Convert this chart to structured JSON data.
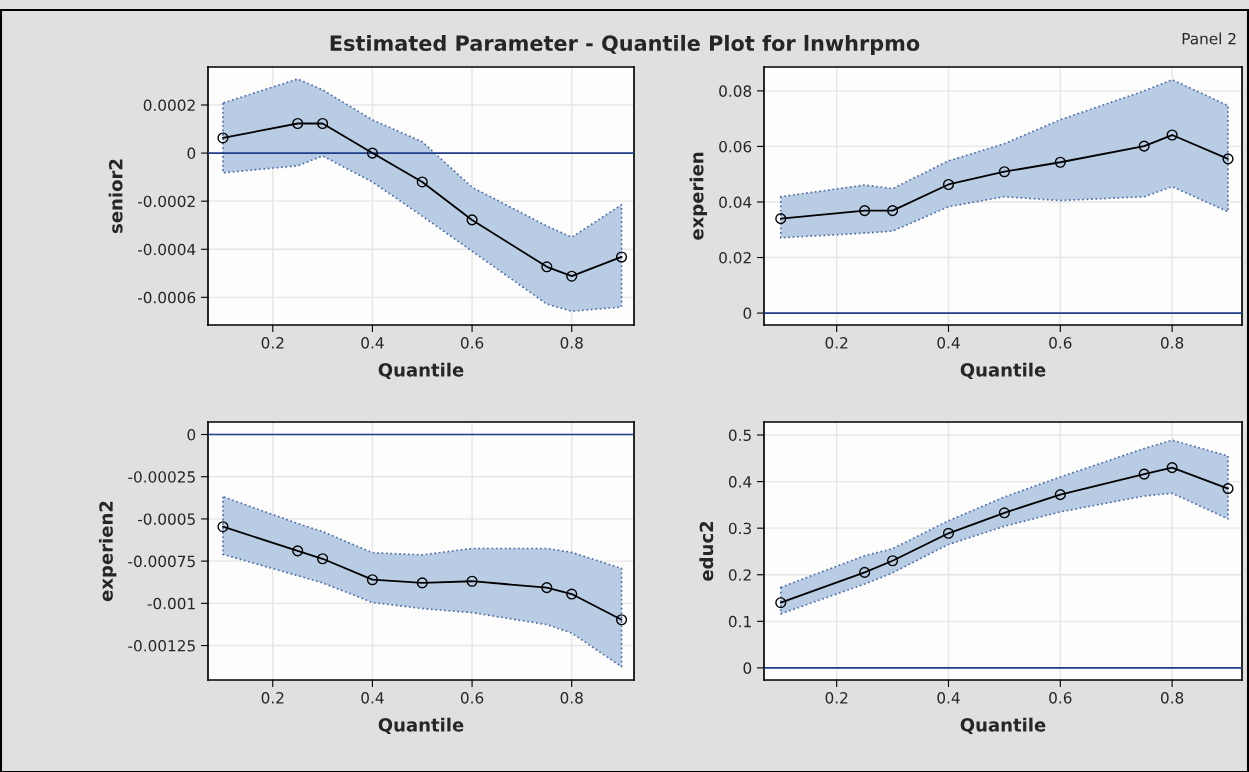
{
  "chart_data": [
    {
      "type": "line",
      "title": "Estimated Parameter - Quantile Plot for lnwhrpmo",
      "xlabel": "Quantile",
      "ylabel": "senior2",
      "x": [
        0.1,
        0.25,
        0.3,
        0.4,
        0.5,
        0.6,
        0.75,
        0.8,
        0.9
      ],
      "series": [
        {
          "color": "#000000",
          "values": [
            6.3e-05,
            0.000123,
            0.000123,
            0.0,
            -0.00012,
            -0.000278,
            -0.000473,
            -0.000512,
            -0.000432
          ],
          "upper": [
            0.000208,
            0.000308,
            0.000263,
            0.000138,
            4.7e-05,
            -0.000142,
            -0.000303,
            -0.00035,
            -0.000215
          ],
          "lower": [
            -8.2e-05,
            -5.3e-05,
            -1.2e-05,
            -0.00012,
            -0.000262,
            -0.000408,
            -0.000628,
            -0.000658,
            -0.00064
          ]
        }
      ],
      "xlim": [
        0.07,
        0.925
      ],
      "xticks": [
        0.2,
        0.4,
        0.6,
        0.8
      ],
      "ylim": [
        -0.000715,
        0.000358
      ],
      "yticks": [
        -0.0006,
        -0.0004,
        -0.0002,
        0,
        0.0002
      ],
      "ref_lines": [
        {
          "axis": "y",
          "value": 0,
          "color": "#1f3d8a"
        }
      ],
      "grid": true,
      "marker": "circle",
      "line_style": "solid"
    },
    {
      "type": "line",
      "xlabel": "Quantile",
      "ylabel": "experien",
      "annotations": [
        "Panel 2"
      ],
      "x": [
        0.1,
        0.25,
        0.3,
        0.4,
        0.5,
        0.6,
        0.75,
        0.8,
        0.9
      ],
      "series": [
        {
          "color": "#000000",
          "values": [
            0.034,
            0.0369,
            0.0369,
            0.0463,
            0.0509,
            0.0543,
            0.0601,
            0.0641,
            0.0555
          ],
          "upper": [
            0.0419,
            0.0461,
            0.0448,
            0.0548,
            0.061,
            0.0696,
            0.08,
            0.084,
            0.0747
          ],
          "lower": [
            0.0271,
            0.0288,
            0.0295,
            0.0383,
            0.0419,
            0.0405,
            0.0419,
            0.0455,
            0.0365
          ]
        }
      ],
      "xlim": [
        0.07,
        0.925
      ],
      "xticks": [
        0.2,
        0.4,
        0.6,
        0.8
      ],
      "ylim": [
        -0.0043,
        0.0886
      ],
      "yticks": [
        0,
        0.02,
        0.04,
        0.06,
        0.08
      ],
      "ref_lines": [
        {
          "axis": "y",
          "value": 0,
          "color": "#1f3d8a"
        }
      ],
      "grid": true,
      "marker": "circle",
      "line_style": "solid"
    },
    {
      "type": "line",
      "xlabel": "Quantile",
      "ylabel": "experien2",
      "x": [
        0.1,
        0.25,
        0.3,
        0.4,
        0.5,
        0.6,
        0.75,
        0.8,
        0.9
      ],
      "series": [
        {
          "color": "#000000",
          "values": [
            -0.000546,
            -0.000689,
            -0.000736,
            -0.00086,
            -0.000879,
            -0.000869,
            -0.000907,
            -0.000945,
            -0.001097
          ],
          "upper": [
            -0.000368,
            -0.000527,
            -0.000575,
            -0.0007,
            -0.000713,
            -0.000675,
            -0.000675,
            -0.000698,
            -0.000793
          ],
          "lower": [
            -0.00071,
            -0.000836,
            -0.000879,
            -0.000995,
            -0.001031,
            -0.001055,
            -0.001126,
            -0.001176,
            -0.001375
          ]
        }
      ],
      "xlim": [
        0.07,
        0.925
      ],
      "xticks": [
        0.2,
        0.4,
        0.6,
        0.8
      ],
      "ylim": [
        -0.001454,
        7.4e-05
      ],
      "yticks": [
        -0.00125,
        -0.001,
        -0.00075,
        -0.0005,
        -0.00025,
        0
      ],
      "ref_lines": [
        {
          "axis": "y",
          "value": 0,
          "color": "#1f3d8a"
        }
      ],
      "grid": true,
      "marker": "circle",
      "line_style": "solid"
    },
    {
      "type": "line",
      "xlabel": "Quantile",
      "ylabel": "educ2",
      "x": [
        0.1,
        0.25,
        0.3,
        0.4,
        0.5,
        0.6,
        0.75,
        0.8,
        0.9
      ],
      "series": [
        {
          "color": "#000000",
          "values": [
            0.14,
            0.205,
            0.23,
            0.289,
            0.333,
            0.372,
            0.416,
            0.43,
            0.385
          ],
          "upper": [
            0.173,
            0.241,
            0.256,
            0.316,
            0.367,
            0.41,
            0.471,
            0.489,
            0.455
          ],
          "lower": [
            0.116,
            0.18,
            0.204,
            0.265,
            0.304,
            0.335,
            0.369,
            0.375,
            0.32
          ]
        }
      ],
      "xlim": [
        0.07,
        0.925
      ],
      "xticks": [
        0.2,
        0.4,
        0.6,
        0.8
      ],
      "ylim": [
        -0.026,
        0.528
      ],
      "yticks": [
        0,
        0.1,
        0.2,
        0.3,
        0.4,
        0.5
      ],
      "ref_lines": [
        {
          "axis": "y",
          "value": 0,
          "color": "#1f3d8a"
        }
      ],
      "grid": true,
      "marker": "circle",
      "line_style": "solid"
    }
  ]
}
